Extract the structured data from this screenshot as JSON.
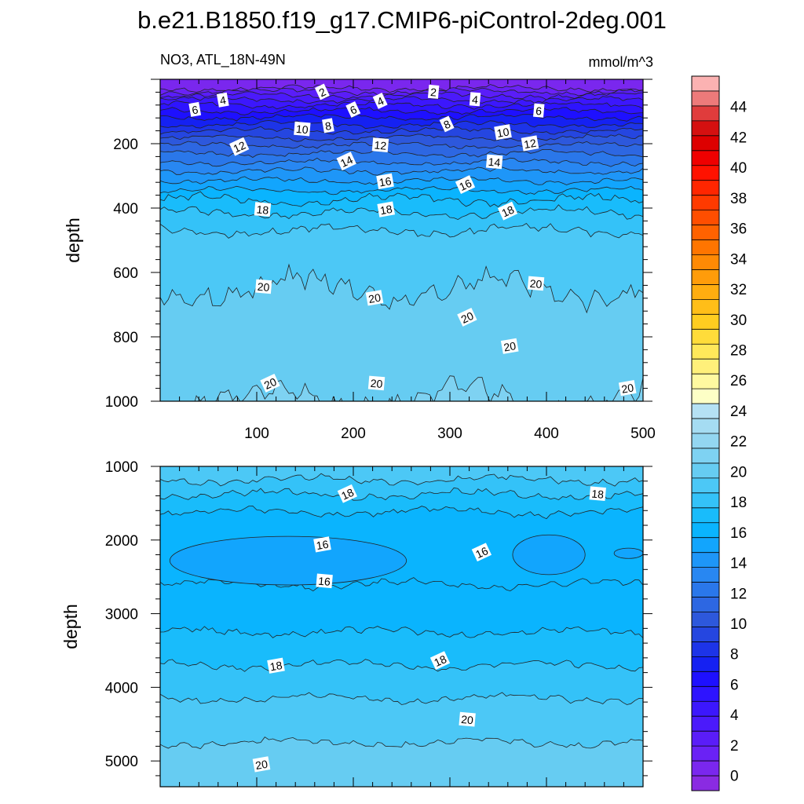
{
  "title": "b.e21.B1850.f19_g17.CMIP6-piControl-2deg.001",
  "subtitle_left": "NO3, ATL_18N-49N",
  "subtitle_right": "mmol/m^3",
  "chart_data": [
    {
      "type": "contour",
      "panel": "upper",
      "variable": "NO3",
      "region": "ATL_18N-49N",
      "units": "mmol/m^3",
      "xlabel": "",
      "ylabel": "depth",
      "xlim": [
        0,
        500
      ],
      "ylim": [
        1000,
        0
      ],
      "x_ticks": [
        100,
        200,
        300,
        400,
        500
      ],
      "y_ticks": [
        200,
        400,
        600,
        800,
        1000
      ],
      "contour_interval": 1,
      "contours": [
        {
          "level": 1,
          "depth": 28
        },
        {
          "level": 2,
          "depth": 38
        },
        {
          "level": 3,
          "depth": 50
        },
        {
          "level": 4,
          "depth": 64
        },
        {
          "level": 5,
          "depth": 80
        },
        {
          "level": 6,
          "depth": 98
        },
        {
          "level": 7,
          "depth": 118
        },
        {
          "level": 8,
          "depth": 140
        },
        {
          "level": 9,
          "depth": 160
        },
        {
          "level": 10,
          "depth": 182
        },
        {
          "level": 11,
          "depth": 205
        },
        {
          "level": 12,
          "depth": 230
        },
        {
          "level": 13,
          "depth": 258
        },
        {
          "level": 14,
          "depth": 285
        },
        {
          "level": 15,
          "depth": 315
        },
        {
          "level": 16,
          "depth": 345
        },
        {
          "level": 17,
          "depth": 375
        },
        {
          "level": 18,
          "depth": 415
        },
        {
          "level": 19,
          "depth": 470
        },
        {
          "level": 20,
          "depth": 650
        },
        {
          "level": 21,
          "depth": 990
        }
      ],
      "contour_labels": [
        {
          "text": "2",
          "x": 168,
          "y": 40
        },
        {
          "text": "2",
          "x": 283,
          "y": 40
        },
        {
          "text": "4",
          "x": 65,
          "y": 65
        },
        {
          "text": "4",
          "x": 228,
          "y": 68
        },
        {
          "text": "4",
          "x": 326,
          "y": 63
        },
        {
          "text": "6",
          "x": 36,
          "y": 95
        },
        {
          "text": "6",
          "x": 200,
          "y": 95
        },
        {
          "text": "6",
          "x": 392,
          "y": 98
        },
        {
          "text": "8",
          "x": 174,
          "y": 145
        },
        {
          "text": "8",
          "x": 297,
          "y": 140
        },
        {
          "text": "10",
          "x": 147,
          "y": 155
        },
        {
          "text": "10",
          "x": 355,
          "y": 165
        },
        {
          "text": "12",
          "x": 82,
          "y": 210
        },
        {
          "text": "12",
          "x": 228,
          "y": 205
        },
        {
          "text": "12",
          "x": 383,
          "y": 200
        },
        {
          "text": "14",
          "x": 193,
          "y": 255
        },
        {
          "text": "14",
          "x": 346,
          "y": 257
        },
        {
          "text": "16",
          "x": 233,
          "y": 318
        },
        {
          "text": "16",
          "x": 316,
          "y": 328
        },
        {
          "text": "18",
          "x": 106,
          "y": 405
        },
        {
          "text": "18",
          "x": 234,
          "y": 405
        },
        {
          "text": "18",
          "x": 360,
          "y": 410
        },
        {
          "text": "20",
          "x": 107,
          "y": 645
        },
        {
          "text": "20",
          "x": 222,
          "y": 680
        },
        {
          "text": "20",
          "x": 318,
          "y": 740
        },
        {
          "text": "20",
          "x": 389,
          "y": 635
        },
        {
          "text": "20",
          "x": 362,
          "y": 830
        },
        {
          "text": "20",
          "x": 114,
          "y": 945
        },
        {
          "text": "20",
          "x": 224,
          "y": 945
        },
        {
          "text": "20",
          "x": 484,
          "y": 960
        }
      ]
    },
    {
      "type": "contour",
      "panel": "lower",
      "xlabel": "",
      "ylabel": "depth",
      "xlim": [
        0,
        500
      ],
      "ylim": [
        5350,
        1000
      ],
      "y_ticks": [
        1000,
        2000,
        3000,
        4000,
        5000
      ],
      "contours": [
        {
          "level": 19,
          "depth": 1180
        },
        {
          "level": 18,
          "depth": 1380
        },
        {
          "level": 17,
          "depth": 1620
        },
        {
          "level": 16,
          "depth": 2600
        },
        {
          "level": 17,
          "depth": 3250
        },
        {
          "level": 18,
          "depth": 3700
        },
        {
          "level": 19,
          "depth": 4150
        },
        {
          "level": 20,
          "depth": 4750
        }
      ],
      "contour_labels": [
        {
          "text": "18",
          "x": 194,
          "y": 1375
        },
        {
          "text": "18",
          "x": 453,
          "y": 1375
        },
        {
          "text": "16",
          "x": 168,
          "y": 2065
        },
        {
          "text": "16",
          "x": 333,
          "y": 2170
        },
        {
          "text": "16",
          "x": 170,
          "y": 2560
        },
        {
          "text": "18",
          "x": 120,
          "y": 3710
        },
        {
          "text": "18",
          "x": 290,
          "y": 3640
        },
        {
          "text": "20",
          "x": 318,
          "y": 4440
        },
        {
          "text": "20",
          "x": 105,
          "y": 5050
        }
      ]
    }
  ],
  "colorbar": {
    "labels": [
      "0",
      "2",
      "4",
      "6",
      "8",
      "10",
      "12",
      "14",
      "16",
      "18",
      "20",
      "22",
      "24",
      "26",
      "28",
      "30",
      "32",
      "34",
      "36",
      "38",
      "40",
      "42",
      "44"
    ],
    "bin_edges_min": -1,
    "bin_edges_max": 46,
    "colors": [
      "#8a2be2",
      "#7a27ee",
      "#6a22f5",
      "#5a1df8",
      "#4b1afb",
      "#3c17fd",
      "#2e14ff",
      "#1e10ff",
      "#1521f2",
      "#1d34e8",
      "#2546e0",
      "#2d58dc",
      "#2d67e2",
      "#2a77ea",
      "#2887f2",
      "#1e96f8",
      "#12a5fd",
      "#0ab4fe",
      "#19bcfb",
      "#34c2f8",
      "#4cc8f6",
      "#66ccf2",
      "#7ed2f2",
      "#93d6f1",
      "#a5dcf2",
      "#b5e1f4",
      "#fdffc6",
      "#fff9a0",
      "#fff07a",
      "#ffe85a",
      "#ffdc3a",
      "#ffcd20",
      "#ffbe18",
      "#ffad10",
      "#ff9c0a",
      "#ff8a05",
      "#ff7500",
      "#ff6200",
      "#ff4e00",
      "#ff3a00",
      "#ff2600",
      "#ff1200",
      "#ef0000",
      "#dd0000",
      "#d51010",
      "#e03c3c",
      "#ed7a7a",
      "#fbb2b2"
    ]
  }
}
